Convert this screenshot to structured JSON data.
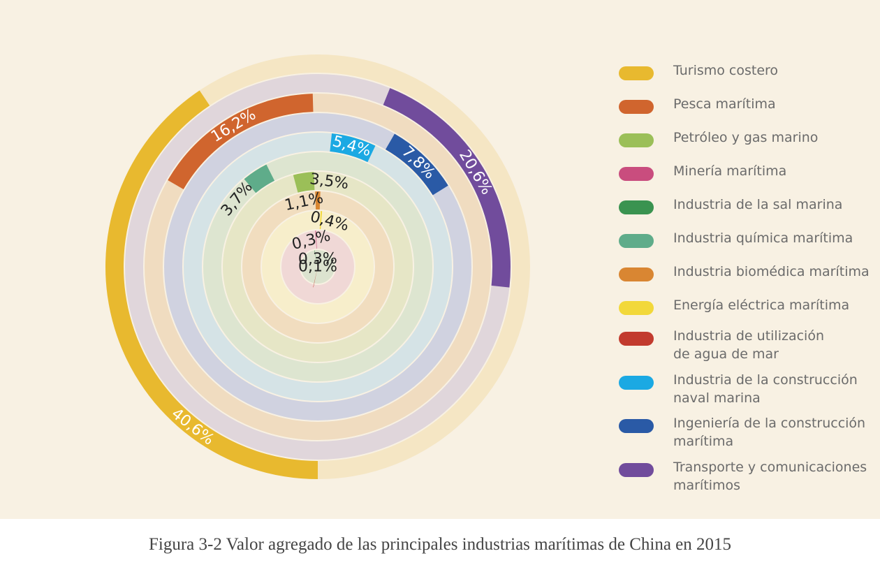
{
  "chart_data": {
    "type": "radial-bar",
    "title": "",
    "caption": "Figura 3-2 Valor agregado de las principales industrias marítimas de China en 2015",
    "unit": "%",
    "legend_position": "right",
    "series": [
      {
        "name": "Turismo costero",
        "value": 40.6,
        "label": "40,6%",
        "color": "#e8b92f",
        "track_color": "#f5e6c4",
        "label_color": "#ffffff"
      },
      {
        "name": "Transporte y comunicaciones marítimos",
        "value": 20.6,
        "label": "20,6%",
        "color": "#714c9c",
        "track_color": "#e0d6db",
        "label_color": "#ffffff"
      },
      {
        "name": "Pesca marítima",
        "value": 16.2,
        "label": "16,2%",
        "color": "#d0652e",
        "track_color": "#f0dcc0",
        "label_color": "#ffffff"
      },
      {
        "name": "Ingeniería de la construcción marítima",
        "value": 7.8,
        "label": "7,8%",
        "color": "#2a5aa6",
        "track_color": "#d0d2e0",
        "label_color": "#ffffff"
      },
      {
        "name": "Industria de la construcción naval marina",
        "value": 5.4,
        "label": "5,4%",
        "color": "#1ba9e3",
        "track_color": "#d5e3e6",
        "label_color": "#ffffff"
      },
      {
        "name": "Industria química marítima",
        "value": 3.7,
        "label": "3,7%",
        "color": "#5fac8a",
        "track_color": "#dde5d0",
        "label_color": "#222222"
      },
      {
        "name": "Petróleo y gas marino",
        "value": 3.5,
        "label": "3,5%",
        "color": "#9bbf58",
        "track_color": "#e6e6c6",
        "label_color": "#222222"
      },
      {
        "name": "Industria biomédica marítima",
        "value": 1.1,
        "label": "1,1%",
        "color": "#d98632",
        "track_color": "#f1ddbf",
        "label_color": "#222222"
      },
      {
        "name": "Energía eléctrica marítima",
        "value": 0.4,
        "label": "0,4%",
        "color": "#f2d83a",
        "track_color": "#f7eecb",
        "label_color": "#222222"
      },
      {
        "name": "Minería marítima",
        "value": 0.3,
        "label": "0,3%",
        "color": "#c94d7e",
        "track_color": "#f0d8d6",
        "label_color": "#222222"
      },
      {
        "name": "Industria de la sal marina",
        "value": 0.3,
        "label": "0,3%",
        "color": "#3a9350",
        "track_color": "#dce3cf",
        "label_color": "#222222"
      },
      {
        "name": "Industria de utilización de agua de mar",
        "value": 0.1,
        "label": "0,1%",
        "color": "#c23b2e",
        "track_color": "#efd6c1",
        "label_color": "#222222"
      }
    ]
  },
  "legend": {
    "items": [
      {
        "label": "Turismo costero",
        "color": "#e8b92f"
      },
      {
        "label": "Pesca marítima",
        "color": "#d0652e"
      },
      {
        "label": "Petróleo y gas marino",
        "color": "#9bbf58"
      },
      {
        "label": "Minería marítima",
        "color": "#c94d7e"
      },
      {
        "label": "Industria de la sal marina",
        "color": "#3a9350"
      },
      {
        "label": "Industria química marítima",
        "color": "#5fac8a"
      },
      {
        "label": "Industria biomédica marítima",
        "color": "#d98632"
      },
      {
        "label": "Energía eléctrica marítima",
        "color": "#f2d83a"
      },
      {
        "label": "Industria de utilización\nde agua de mar",
        "color": "#c23b2e"
      },
      {
        "label": "Industria de la construcción\nnaval marina",
        "color": "#1ba9e3"
      },
      {
        "label": "Ingeniería de la construcción\nmarítima",
        "color": "#2a5aa6"
      },
      {
        "label": "Transporte y comunicaciones\nmarítimos",
        "color": "#714c9c"
      }
    ]
  },
  "caption": "Figura 3-2 Valor agregado de las principales industrias marítimas de China en 2015"
}
